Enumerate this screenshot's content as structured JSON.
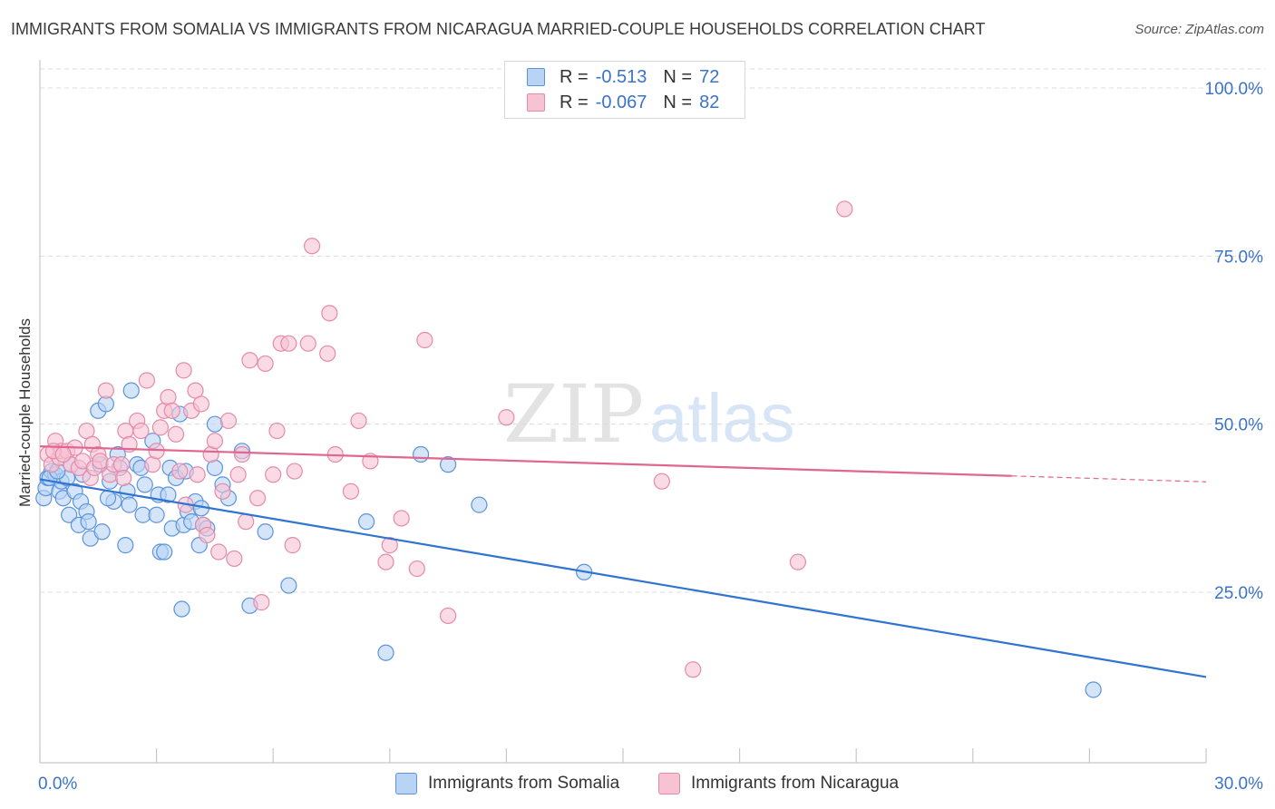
{
  "title": "IMMIGRANTS FROM SOMALIA VS IMMIGRANTS FROM NICARAGUA MARRIED-COUPLE HOUSEHOLDS CORRELATION CHART",
  "source": "Source: ZipAtlas.com",
  "watermark": {
    "zip": "ZIP",
    "atlas": "atlas"
  },
  "legend": {
    "r_label": "R =",
    "n_label": "N =",
    "somalia": {
      "r": "-0.513",
      "n": "72"
    },
    "nicaragua": {
      "r": "-0.067",
      "n": "82"
    }
  },
  "colors": {
    "somalia_fill": "#b9d3f5",
    "somalia_stroke": "#5b93dc",
    "somalia_line": "#2f74d0",
    "nicaragua_fill": "#f7c3d3",
    "nicaragua_stroke": "#e58aa8",
    "nicaragua_line": "#e0668f",
    "tick_label": "#3a73c9",
    "grid": "#dcdcdc"
  },
  "chart_data": {
    "type": "scatter",
    "title": "IMMIGRANTS FROM SOMALIA VS IMMIGRANTS FROM NICARAGUA MARRIED-COUPLE HOUSEHOLDS CORRELATION CHART",
    "xlabel": "",
    "ylabel": "Married-couple Households",
    "xlim": [
      0,
      30
    ],
    "ylim": [
      0,
      105
    ],
    "x_tick_labels": [
      "0.0%",
      "30.0%"
    ],
    "y_ticks": [
      25,
      50,
      75,
      100
    ],
    "y_tick_labels": [
      "25.0%",
      "50.0%",
      "75.0%",
      "100.0%"
    ],
    "grid": "horizontal dashed",
    "legend_position": "top-center",
    "series": [
      {
        "name": "Immigrants from Somalia",
        "trend": [
          [
            0,
            41.8
          ],
          [
            30,
            12.4
          ]
        ],
        "points": [
          [
            0.1,
            39
          ],
          [
            0.15,
            40.5
          ],
          [
            0.2,
            42
          ],
          [
            0.3,
            43
          ],
          [
            0.4,
            42.5
          ],
          [
            0.5,
            40
          ],
          [
            0.55,
            41.5
          ],
          [
            0.6,
            39
          ],
          [
            0.7,
            42
          ],
          [
            0.75,
            36.5
          ],
          [
            0.8,
            44
          ],
          [
            0.9,
            40
          ],
          [
            1.0,
            35
          ],
          [
            1.05,
            38.5
          ],
          [
            1.1,
            42.5
          ],
          [
            1.2,
            37
          ],
          [
            1.25,
            35.5
          ],
          [
            1.3,
            33
          ],
          [
            1.5,
            52
          ],
          [
            1.55,
            44
          ],
          [
            1.6,
            34
          ],
          [
            1.7,
            53
          ],
          [
            1.8,
            41.5
          ],
          [
            1.9,
            38.5
          ],
          [
            2.0,
            45.5
          ],
          [
            2.05,
            43.5
          ],
          [
            2.2,
            32
          ],
          [
            2.25,
            40
          ],
          [
            2.3,
            38
          ],
          [
            2.35,
            55
          ],
          [
            2.5,
            44
          ],
          [
            2.6,
            43.5
          ],
          [
            2.65,
            36.5
          ],
          [
            2.7,
            41
          ],
          [
            2.9,
            47.5
          ],
          [
            3.0,
            36.5
          ],
          [
            3.05,
            39.5
          ],
          [
            3.1,
            31
          ],
          [
            3.2,
            31
          ],
          [
            3.3,
            39.5
          ],
          [
            3.35,
            43.5
          ],
          [
            3.4,
            34.5
          ],
          [
            3.5,
            42
          ],
          [
            3.6,
            51.5
          ],
          [
            3.7,
            35
          ],
          [
            3.75,
            43
          ],
          [
            3.8,
            37
          ],
          [
            3.9,
            35.5
          ],
          [
            4.0,
            38.5
          ],
          [
            4.1,
            32
          ],
          [
            4.15,
            37.5
          ],
          [
            4.2,
            35
          ],
          [
            4.3,
            34.5
          ],
          [
            4.5,
            50
          ],
          [
            4.5,
            43.5
          ],
          [
            4.7,
            41
          ],
          [
            4.85,
            39
          ],
          [
            5.2,
            46
          ],
          [
            5.4,
            23
          ],
          [
            5.8,
            34
          ],
          [
            6.4,
            26
          ],
          [
            8.4,
            35.5
          ],
          [
            8.9,
            16
          ],
          [
            9.8,
            45.5
          ],
          [
            10.5,
            44
          ],
          [
            11.3,
            38
          ],
          [
            14,
            28
          ],
          [
            27.1,
            10.5
          ],
          [
            3.65,
            22.5
          ],
          [
            0.25,
            42
          ],
          [
            0.45,
            43
          ],
          [
            1.75,
            39
          ]
        ]
      },
      {
        "name": "Immigrants from Nicaragua",
        "trend": [
          [
            0,
            46.7
          ],
          [
            25,
            42.3
          ]
        ],
        "points": [
          [
            0.2,
            45.5
          ],
          [
            0.3,
            44
          ],
          [
            0.4,
            47.5
          ],
          [
            0.5,
            45
          ],
          [
            0.55,
            46
          ],
          [
            0.7,
            46
          ],
          [
            0.8,
            44
          ],
          [
            0.9,
            46.5
          ],
          [
            1.0,
            43.5
          ],
          [
            1.1,
            44.5
          ],
          [
            1.2,
            49
          ],
          [
            1.3,
            42
          ],
          [
            1.35,
            47
          ],
          [
            1.4,
            43.5
          ],
          [
            1.5,
            45.5
          ],
          [
            1.55,
            44.5
          ],
          [
            1.7,
            55
          ],
          [
            1.8,
            42.5
          ],
          [
            1.9,
            44
          ],
          [
            2.1,
            44
          ],
          [
            2.15,
            42
          ],
          [
            2.2,
            49
          ],
          [
            2.3,
            47
          ],
          [
            2.5,
            50.5
          ],
          [
            2.6,
            49
          ],
          [
            2.75,
            56.5
          ],
          [
            2.9,
            44
          ],
          [
            3.0,
            46
          ],
          [
            3.1,
            49.5
          ],
          [
            3.2,
            52
          ],
          [
            3.3,
            54
          ],
          [
            3.4,
            52
          ],
          [
            3.5,
            48.5
          ],
          [
            3.6,
            43
          ],
          [
            3.7,
            58
          ],
          [
            3.75,
            38
          ],
          [
            3.9,
            52
          ],
          [
            4.0,
            55
          ],
          [
            4.05,
            42.5
          ],
          [
            4.15,
            53
          ],
          [
            4.2,
            35
          ],
          [
            4.3,
            33.5
          ],
          [
            4.4,
            45.5
          ],
          [
            4.5,
            47.5
          ],
          [
            4.6,
            31
          ],
          [
            4.7,
            40
          ],
          [
            4.85,
            50.5
          ],
          [
            5.0,
            30
          ],
          [
            5.1,
            42.5
          ],
          [
            5.2,
            45.5
          ],
          [
            5.3,
            35.5
          ],
          [
            5.4,
            59.5
          ],
          [
            5.6,
            39
          ],
          [
            5.7,
            23.5
          ],
          [
            5.8,
            59
          ],
          [
            6.0,
            42.5
          ],
          [
            6.1,
            49
          ],
          [
            6.2,
            62
          ],
          [
            6.4,
            62
          ],
          [
            6.5,
            32
          ],
          [
            6.55,
            43
          ],
          [
            6.9,
            62
          ],
          [
            7.0,
            76.5
          ],
          [
            7.4,
            60.5
          ],
          [
            7.45,
            66.5
          ],
          [
            7.6,
            45.5
          ],
          [
            8.0,
            40
          ],
          [
            8.2,
            50.5
          ],
          [
            8.5,
            44.5
          ],
          [
            8.9,
            29.5
          ],
          [
            9.0,
            32
          ],
          [
            9.3,
            36
          ],
          [
            9.7,
            28.5
          ],
          [
            9.9,
            62.5
          ],
          [
            10.5,
            21.5
          ],
          [
            12.0,
            51
          ],
          [
            16.0,
            41.5
          ],
          [
            16.8,
            13.5
          ],
          [
            19.5,
            29.5
          ],
          [
            20.7,
            82
          ],
          [
            0.35,
            46
          ],
          [
            0.6,
            45.5
          ]
        ]
      }
    ]
  }
}
